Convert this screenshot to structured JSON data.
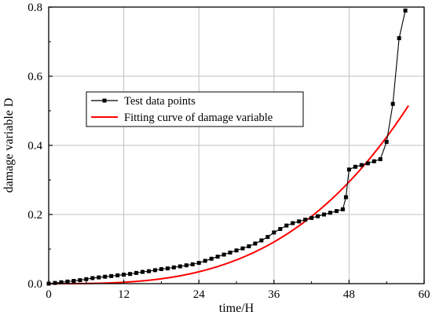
{
  "chart_data": {
    "type": "line",
    "title": "",
    "xlabel": "time/H",
    "ylabel": "damage variable D",
    "xlim": [
      0,
      60
    ],
    "ylim": [
      0,
      0.8
    ],
    "xticks": [
      0,
      12,
      24,
      36,
      48,
      60
    ],
    "yticks": [
      0.0,
      0.2,
      0.4,
      0.6,
      0.8
    ],
    "xtick_labels": [
      "0",
      "12",
      "24",
      "36",
      "48",
      "60"
    ],
    "ytick_labels": [
      "0.0",
      "0.2",
      "0.4",
      "0.6",
      "0.8"
    ],
    "grid": true,
    "legend_position": "center-left",
    "series": [
      {
        "name": "Test data points",
        "color": "#000000",
        "marker": "square",
        "x": [
          0,
          1,
          2,
          3,
          4,
          5,
          6,
          7,
          8,
          9,
          10,
          11,
          12,
          13,
          14,
          15,
          16,
          17,
          18,
          19,
          20,
          21,
          22,
          23,
          24,
          25,
          26,
          27,
          28,
          29,
          30,
          31,
          32,
          33,
          34,
          35,
          36,
          37,
          38,
          39,
          40,
          41,
          42,
          43,
          44,
          45,
          46,
          47,
          47.5,
          48,
          49,
          50,
          51,
          52,
          53,
          54,
          55,
          56,
          57
        ],
        "y": [
          0.0,
          0.002,
          0.004,
          0.006,
          0.008,
          0.01,
          0.013,
          0.016,
          0.018,
          0.02,
          0.022,
          0.024,
          0.026,
          0.028,
          0.031,
          0.034,
          0.036,
          0.039,
          0.042,
          0.044,
          0.047,
          0.05,
          0.053,
          0.056,
          0.06,
          0.066,
          0.072,
          0.078,
          0.084,
          0.09,
          0.096,
          0.102,
          0.108,
          0.116,
          0.125,
          0.135,
          0.148,
          0.158,
          0.168,
          0.175,
          0.18,
          0.185,
          0.19,
          0.195,
          0.2,
          0.205,
          0.21,
          0.215,
          0.25,
          0.33,
          0.338,
          0.343,
          0.348,
          0.354,
          0.36,
          0.41,
          0.52,
          0.71,
          0.79
        ]
      },
      {
        "name": "Fitting curve of damage variable",
        "color": "#ff0000",
        "marker": "none",
        "fit": "power",
        "coef": 0.515,
        "xmax": 57.5,
        "exponent": 3.1
      }
    ]
  }
}
